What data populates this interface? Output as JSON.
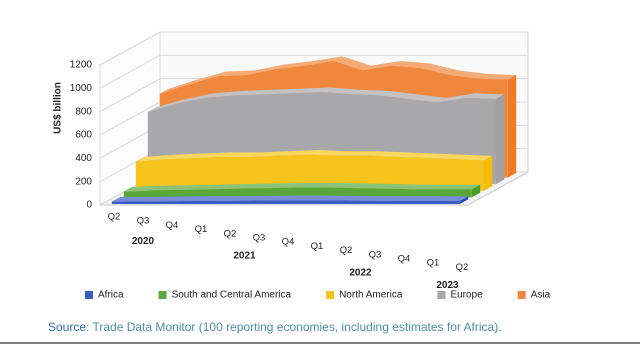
{
  "chart_data": {
    "type": "area3d",
    "y_label": "US$ billion",
    "categories": [
      "Q2",
      "Q3",
      "Q4",
      "Q1",
      "Q2",
      "Q3",
      "Q4",
      "Q1",
      "Q2",
      "Q3",
      "Q4",
      "Q1",
      "Q2"
    ],
    "groups": [
      {
        "label": "2020",
        "start": 0,
        "end": 2
      },
      {
        "label": "2021",
        "start": 3,
        "end": 6
      },
      {
        "label": "2022",
        "start": 7,
        "end": 10
      },
      {
        "label": "2023",
        "start": 11,
        "end": 12
      }
    ],
    "series": [
      {
        "name": "Africa",
        "color": "#3b5cc4",
        "values": [
          20,
          22,
          25,
          27,
          28,
          30,
          32,
          32,
          30,
          28,
          27,
          27,
          26
        ]
      },
      {
        "name": "South and Central America",
        "color": "#5aa83c",
        "values": [
          50,
          60,
          65,
          70,
          75,
          80,
          85,
          85,
          80,
          75,
          70,
          70,
          70
        ]
      },
      {
        "name": "North America",
        "color": "#f6c41c",
        "values": [
          250,
          270,
          280,
          290,
          290,
          300,
          310,
          300,
          300,
          290,
          280,
          270,
          260
        ]
      },
      {
        "name": "Europe",
        "color": "#a8a8ab",
        "values": [
          620,
          690,
          740,
          760,
          770,
          780,
          790,
          770,
          760,
          730,
          700,
          740,
          730
        ]
      },
      {
        "name": "Asia",
        "color": "#ef873c",
        "values": [
          720,
          800,
          870,
          880,
          930,
          960,
          1000,
          920,
          960,
          940,
          880,
          850,
          840
        ]
      }
    ],
    "ylim": [
      0,
      1200
    ],
    "yticks": [
      0,
      200,
      400,
      600,
      800,
      1000,
      1200
    ],
    "grid": true,
    "source_label": "Source",
    "source_text": ": Trade Data Monitor (100 reporting economies, including estimates for Africa)."
  }
}
